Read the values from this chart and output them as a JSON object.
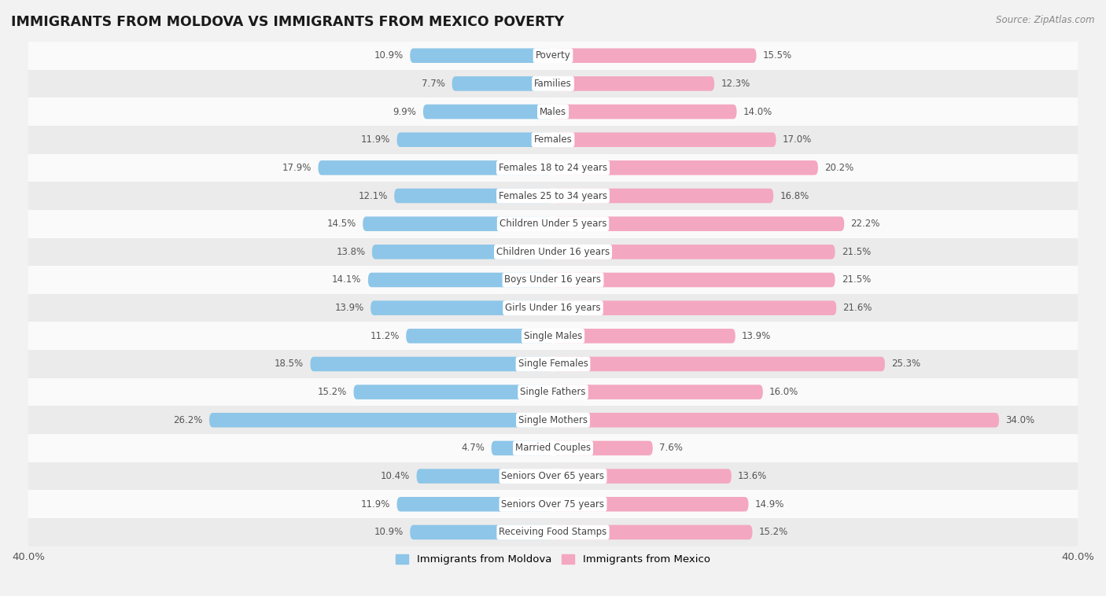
{
  "title": "IMMIGRANTS FROM MOLDOVA VS IMMIGRANTS FROM MEXICO POVERTY",
  "source": "Source: ZipAtlas.com",
  "categories": [
    "Poverty",
    "Families",
    "Males",
    "Females",
    "Females 18 to 24 years",
    "Females 25 to 34 years",
    "Children Under 5 years",
    "Children Under 16 years",
    "Boys Under 16 years",
    "Girls Under 16 years",
    "Single Males",
    "Single Females",
    "Single Fathers",
    "Single Mothers",
    "Married Couples",
    "Seniors Over 65 years",
    "Seniors Over 75 years",
    "Receiving Food Stamps"
  ],
  "moldova_values": [
    10.9,
    7.7,
    9.9,
    11.9,
    17.9,
    12.1,
    14.5,
    13.8,
    14.1,
    13.9,
    11.2,
    18.5,
    15.2,
    26.2,
    4.7,
    10.4,
    11.9,
    10.9
  ],
  "mexico_values": [
    15.5,
    12.3,
    14.0,
    17.0,
    20.2,
    16.8,
    22.2,
    21.5,
    21.5,
    21.6,
    13.9,
    25.3,
    16.0,
    34.0,
    7.6,
    13.6,
    14.9,
    15.2
  ],
  "moldova_color": "#8dc6e8",
  "mexico_color": "#f4a7c0",
  "background_color": "#f2f2f2",
  "row_bg_odd": "#fafafa",
  "row_bg_even": "#ebebeb",
  "axis_max": 40.0,
  "legend_moldova": "Immigrants from Moldova",
  "legend_mexico": "Immigrants from Mexico",
  "bar_height": 0.52,
  "label_fontsize": 8.5,
  "title_fontsize": 12.5,
  "source_fontsize": 8.5
}
